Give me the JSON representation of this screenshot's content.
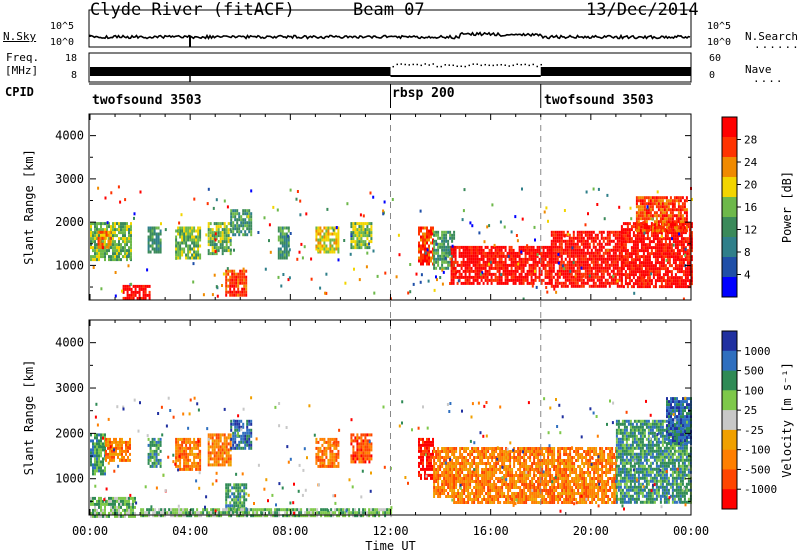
{
  "header": {
    "station": "Clyde River (fitACF)",
    "beam": "Beam 07",
    "date": "13/Dec/2014"
  },
  "nsky": {
    "left_label": "N.Sky",
    "left_ticks": [
      "10^5",
      "10^0"
    ],
    "right_ticks": [
      "10^5",
      "10^0"
    ],
    "right_label": "N.Search",
    "right_dots": "......."
  },
  "freq": {
    "left_label_1": "Freq.",
    "left_label_2": "[MHz]",
    "left_ticks": [
      "18",
      "8"
    ],
    "right_ticks": [
      "60",
      "0"
    ],
    "right_label": "Nave",
    "right_dots": "...."
  },
  "cpid": {
    "label": "CPID",
    "segments": [
      {
        "name": "twofsound 3503",
        "start": 0
      },
      {
        "name": "rbsp 200",
        "start": 12
      },
      {
        "name": "twofsound 3503",
        "start": 18
      }
    ]
  },
  "colors": {
    "power": [
      "#0000ff",
      "#1f4fa8",
      "#2f7f8a",
      "#3a8a5a",
      "#6db84a",
      "#f2d500",
      "#f08a00",
      "#ff3300",
      "#ff0000"
    ],
    "velocity": [
      "#2030a0",
      "#2f6fbf",
      "#2f8a55",
      "#7ec84a",
      "#c8c8c8",
      "#f0a000",
      "#ff7f00",
      "#ff4500",
      "#ff0000"
    ]
  },
  "chart_data": [
    {
      "type": "heatmap",
      "panel": "power",
      "ylabel": "Slant Range [km]",
      "yticks": [
        "1000",
        "2000",
        "3000",
        "4000"
      ],
      "ylim": [
        200,
        4500
      ],
      "xlim": [
        0,
        24
      ],
      "colorbar_label": "Power [dB]",
      "colorbar_ticks": [
        "4",
        "8",
        "12",
        "16",
        "20",
        "24",
        "28"
      ],
      "regions": [
        {
          "t0": 0.0,
          "t1": 1.6,
          "r0": 1100,
          "r1": 2000,
          "level": 4
        },
        {
          "t0": 0.3,
          "t1": 0.8,
          "r0": 1400,
          "r1": 1800,
          "level": 6
        },
        {
          "t0": 1.3,
          "t1": 2.4,
          "r0": 250,
          "r1": 550,
          "level": 8
        },
        {
          "t0": 2.3,
          "t1": 2.8,
          "r0": 1300,
          "r1": 1900,
          "level": 3
        },
        {
          "t0": 3.4,
          "t1": 4.4,
          "r0": 1200,
          "r1": 1900,
          "level": 4
        },
        {
          "t0": 4.7,
          "t1": 5.6,
          "r0": 1300,
          "r1": 2000,
          "level": 4
        },
        {
          "t0": 5.4,
          "t1": 6.2,
          "r0": 300,
          "r1": 900,
          "level": 7
        },
        {
          "t0": 5.6,
          "t1": 6.4,
          "r0": 1700,
          "r1": 2300,
          "level": 3
        },
        {
          "t0": 7.5,
          "t1": 7.9,
          "r0": 1200,
          "r1": 1900,
          "level": 3
        },
        {
          "t0": 9.0,
          "t1": 9.9,
          "r0": 1300,
          "r1": 1900,
          "level": 5
        },
        {
          "t0": 10.4,
          "t1": 11.2,
          "r0": 1400,
          "r1": 2000,
          "level": 4
        },
        {
          "t0": 13.1,
          "t1": 13.7,
          "r0": 1000,
          "r1": 1900,
          "level": 7
        },
        {
          "t0": 13.7,
          "t1": 14.5,
          "r0": 900,
          "r1": 1800,
          "level": 3
        },
        {
          "t0": 14.4,
          "t1": 18.4,
          "r0": 550,
          "r1": 1450,
          "level": 8
        },
        {
          "t0": 18.4,
          "t1": 21.2,
          "r0": 500,
          "r1": 1800,
          "level": 8
        },
        {
          "t0": 21.2,
          "t1": 24.0,
          "r0": 500,
          "r1": 2000,
          "level": 8
        },
        {
          "t0": 21.8,
          "t1": 23.8,
          "r0": 1800,
          "r1": 2600,
          "level": 7
        }
      ]
    },
    {
      "type": "heatmap",
      "panel": "velocity",
      "ylabel": "Slant Range [km]",
      "yticks": [
        "1000",
        "2000",
        "3000",
        "4000"
      ],
      "ylim": [
        200,
        4500
      ],
      "xlim": [
        0,
        24
      ],
      "xticks": [
        "00:00",
        "04:00",
        "08:00",
        "12:00",
        "16:00",
        "20:00",
        "00:00"
      ],
      "xlabel": "Time UT",
      "colorbar_label": "Velocity [m s^-1]",
      "colorbar_ticks": [
        "1000",
        "500",
        "100",
        "25",
        "-25",
        "-100",
        "-500",
        "-1000"
      ],
      "regions": [
        {
          "t0": 0.0,
          "t1": 0.6,
          "r0": 1100,
          "r1": 2000,
          "level": 2
        },
        {
          "t0": 0.6,
          "t1": 1.6,
          "r0": 1400,
          "r1": 1900,
          "level": 6
        },
        {
          "t0": 0.0,
          "t1": 1.8,
          "r0": 200,
          "r1": 600,
          "level": 3
        },
        {
          "t0": 2.3,
          "t1": 2.8,
          "r0": 1300,
          "r1": 1900,
          "level": 2
        },
        {
          "t0": 3.4,
          "t1": 4.4,
          "r0": 1200,
          "r1": 1900,
          "level": 6
        },
        {
          "t0": 4.7,
          "t1": 5.6,
          "r0": 1300,
          "r1": 2000,
          "level": 6
        },
        {
          "t0": 5.4,
          "t1": 6.2,
          "r0": 300,
          "r1": 900,
          "level": 2
        },
        {
          "t0": 5.6,
          "t1": 6.4,
          "r0": 1700,
          "r1": 2300,
          "level": 1
        },
        {
          "t0": 2.0,
          "t1": 12.0,
          "r0": 200,
          "r1": 350,
          "level": 3
        },
        {
          "t0": 9.0,
          "t1": 9.9,
          "r0": 1300,
          "r1": 1900,
          "level": 6
        },
        {
          "t0": 10.4,
          "t1": 11.2,
          "r0": 1400,
          "r1": 2000,
          "level": 7
        },
        {
          "t0": 13.1,
          "t1": 13.7,
          "r0": 1000,
          "r1": 1900,
          "level": 8
        },
        {
          "t0": 13.7,
          "t1": 14.5,
          "r0": 600,
          "r1": 1700,
          "level": 6
        },
        {
          "t0": 14.5,
          "t1": 21.0,
          "r0": 500,
          "r1": 1700,
          "level": 6
        },
        {
          "t0": 21.0,
          "t1": 24.0,
          "r0": 500,
          "r1": 2300,
          "level": 2
        },
        {
          "t0": 23.0,
          "t1": 24.0,
          "r0": 1800,
          "r1": 2800,
          "level": 1
        }
      ]
    }
  ]
}
